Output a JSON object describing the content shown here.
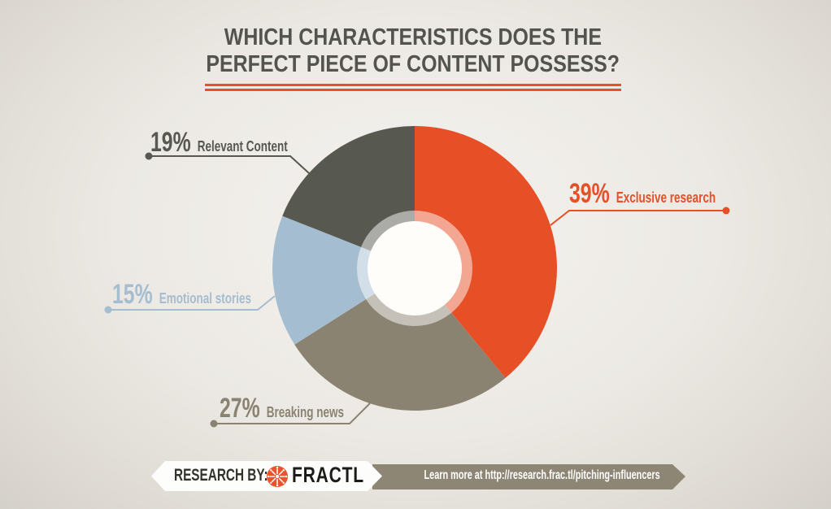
{
  "title": {
    "line1": "WHICH CHARACTERISTICS DOES THE",
    "line2": "PERFECT PIECE OF CONTENT POSSESS?",
    "text_color": "#53544d",
    "underline_color": "#e8502b"
  },
  "chart_data": {
    "type": "pie",
    "donut": true,
    "direction": "clockwise",
    "start_angle_deg": 0,
    "title": "WHICH CHARACTERISTICS DOES THE PERFECT PIECE OF CONTENT POSSESS?",
    "slices": [
      {
        "label": "Exclusive research",
        "value": 39,
        "pct": "39%",
        "color": "#e74f27"
      },
      {
        "label": "Breaking news",
        "value": 27,
        "pct": "27%",
        "color": "#8b8371"
      },
      {
        "label": "Emotional stories",
        "value": 15,
        "pct": "15%",
        "color": "#a5bdd0"
      },
      {
        "label": "Relevant Content",
        "value": 19,
        "pct": "19%",
        "color": "#575850"
      }
    ]
  },
  "banner": {
    "research_by_label": "RESEARCH BY:",
    "brand": "FRACTL",
    "learn_more_text": "Learn more at http://research.frac.tl/pitching-influencers",
    "logo_color": "#e8542e",
    "ribbon_color": "#8e8675",
    "ribbon_text_color": "#ffffff"
  }
}
